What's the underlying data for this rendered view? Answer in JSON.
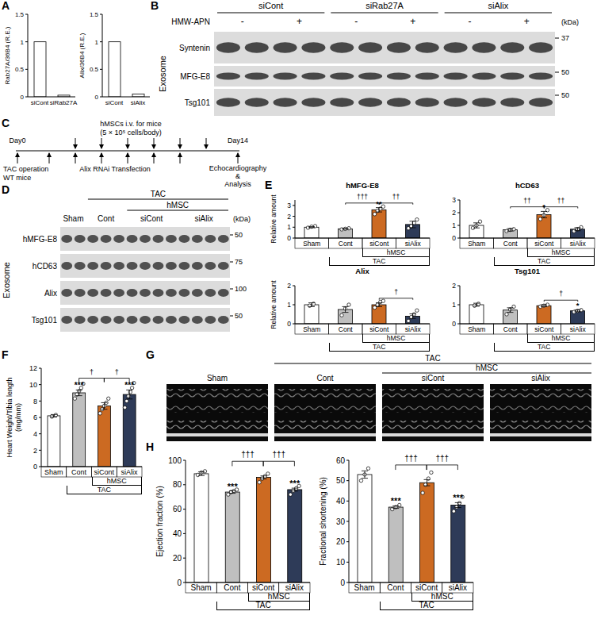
{
  "chart_data": [
    {
      "type": "bar",
      "y_label": "Rab27A/36B4 (R.E.)",
      "categories": [
        "siCont",
        "siRab27A"
      ],
      "values": [
        1,
        0.03
      ],
      "color": "#ffffff",
      "ylim": [
        0,
        1.5
      ],
      "yticks": [
        0,
        0.5,
        1,
        1.5
      ],
      "grid": false
    },
    {
      "type": "bar",
      "y_label": "Alix/36B4 (R.E.)",
      "categories": [
        "siCont",
        "siAlix"
      ],
      "values": [
        1,
        0.05
      ],
      "color": "#ffffff",
      "ylim": [
        0,
        1.5
      ],
      "yticks": [
        0,
        0.5,
        1,
        1.5
      ],
      "grid": false
    },
    {
      "type": "bar",
      "title": "hMFG-E8",
      "y_label": "Relative amount",
      "categories": [
        "Sham",
        "Cont",
        "siCont",
        "siAlix"
      ],
      "values": [
        1.0,
        0.85,
        2.6,
        1.25
      ],
      "errors": [
        0.05,
        0.03,
        0.2,
        0.3
      ],
      "points": [
        [
          0.95,
          1.05,
          1.1
        ],
        [
          0.8,
          0.85,
          0.9
        ],
        [
          2.2,
          2.5,
          2.7,
          2.9
        ],
        [
          0.9,
          1.1,
          1.4,
          1.7
        ]
      ],
      "annotations": [
        null,
        null,
        "**",
        null
      ],
      "brackets": [
        {
          "from": 1,
          "to": 2,
          "label": "†††"
        },
        {
          "from": 2,
          "to": 3,
          "label": "††"
        }
      ],
      "x_groups": [
        {
          "label": "hMSC",
          "from": 2,
          "to": 3
        },
        {
          "label": "TAC",
          "from": 1,
          "to": 3
        }
      ],
      "colors": [
        "#ffffff",
        "#bfbfbf",
        "#cc6a22",
        "#2e3b58"
      ],
      "ylim": [
        0,
        3.5
      ],
      "yticks": [
        0,
        1,
        2,
        3
      ],
      "grid": false
    },
    {
      "type": "bar",
      "title": "hCD63",
      "categories": [
        "Sham",
        "Cont",
        "siCont",
        "siAlix"
      ],
      "values": [
        1.0,
        0.65,
        1.85,
        0.7
      ],
      "errors": [
        0.2,
        0.1,
        0.25,
        0.12
      ],
      "points": [
        [
          0.8,
          1.0,
          1.3
        ],
        [
          0.55,
          0.65,
          0.7
        ],
        [
          1.5,
          1.8,
          2.2
        ],
        [
          0.55,
          0.7,
          0.85
        ]
      ],
      "annotations": [
        null,
        null,
        "*",
        null
      ],
      "brackets": [
        {
          "from": 1,
          "to": 2,
          "label": "††"
        },
        {
          "from": 2,
          "to": 3,
          "label": "††"
        }
      ],
      "x_groups": [
        {
          "label": "hMSC",
          "from": 2,
          "to": 3
        },
        {
          "label": "TAC",
          "from": 1,
          "to": 3
        }
      ],
      "colors": [
        "#ffffff",
        "#bfbfbf",
        "#cc6a22",
        "#2e3b58"
      ],
      "ylim": [
        0,
        3
      ],
      "yticks": [
        0,
        1,
        2,
        3
      ],
      "grid": false
    },
    {
      "type": "bar",
      "title": "Alix",
      "y_label": "Relative amount",
      "categories": [
        "Sham",
        "Cont",
        "siCont",
        "siAlix"
      ],
      "values": [
        1.0,
        0.75,
        1.0,
        0.4
      ],
      "errors": [
        0.1,
        0.15,
        0.1,
        0.12
      ],
      "points": [
        [
          0.95,
          1.05
        ],
        [
          0.45,
          0.8,
          1.0
        ],
        [
          0.85,
          1.0,
          1.15,
          1.2
        ],
        [
          0.15,
          0.35,
          0.5,
          0.7
        ]
      ],
      "annotations": [
        null,
        null,
        null,
        null
      ],
      "brackets": [
        {
          "from": 2,
          "to": 3,
          "label": "†"
        }
      ],
      "x_groups": [
        {
          "label": "hMSC",
          "from": 2,
          "to": 3
        },
        {
          "label": "TAC",
          "from": 1,
          "to": 3
        }
      ],
      "colors": [
        "#ffffff",
        "#bfbfbf",
        "#cc6a22",
        "#2e3b58"
      ],
      "ylim": [
        0,
        2
      ],
      "yticks": [
        0,
        1,
        2
      ],
      "grid": false
    },
    {
      "type": "bar",
      "title": "Tsg101",
      "categories": [
        "Sham",
        "Cont",
        "siCont",
        "siAlix"
      ],
      "values": [
        1.0,
        0.72,
        0.95,
        0.68
      ],
      "errors": [
        0.08,
        0.12,
        0.05,
        0.05
      ],
      "points": [
        [
          0.95,
          1.05
        ],
        [
          0.5,
          0.75,
          0.9
        ],
        [
          0.9,
          0.95,
          1.0
        ],
        [
          0.62,
          0.68,
          0.72
        ]
      ],
      "annotations": [
        null,
        null,
        null,
        "*"
      ],
      "brackets": [
        {
          "from": 2,
          "to": 3,
          "label": "†"
        }
      ],
      "x_groups": [
        {
          "label": "hMSC",
          "from": 2,
          "to": 3
        },
        {
          "label": "TAC",
          "from": 1,
          "to": 3
        }
      ],
      "colors": [
        "#ffffff",
        "#bfbfbf",
        "#cc6a22",
        "#2e3b58"
      ],
      "ylim": [
        0,
        2
      ],
      "yticks": [
        0,
        1,
        2
      ],
      "grid": false
    },
    {
      "type": "bar",
      "y_label": [
        "Heart Weight/Tibia length",
        "(mg/mm)"
      ],
      "categories": [
        "Sham",
        "Cont",
        "siCont",
        "siAlix"
      ],
      "values": [
        6.2,
        9.0,
        7.4,
        8.8
      ],
      "errors": [
        0.15,
        0.35,
        0.4,
        0.55
      ],
      "points": [
        [
          6.1,
          6.3
        ],
        [
          8.3,
          8.8,
          9.2,
          9.6,
          10.1
        ],
        [
          6.5,
          7.0,
          7.4,
          7.8,
          8.3
        ],
        [
          7.2,
          8.0,
          8.6,
          9.1,
          9.6,
          10.2
        ]
      ],
      "annotations": [
        null,
        "***",
        null,
        "***"
      ],
      "brackets": [
        {
          "from": 1,
          "to": 2,
          "label": "†"
        },
        {
          "from": 2,
          "to": 3,
          "label": "†"
        }
      ],
      "x_groups": [
        {
          "label": "hMSC",
          "from": 2,
          "to": 3
        },
        {
          "label": "TAC",
          "from": 1,
          "to": 3
        }
      ],
      "colors": [
        "#ffffff",
        "#bfbfbf",
        "#cc6a22",
        "#2e3b58"
      ],
      "ylim": [
        0,
        12
      ],
      "yticks": [
        0,
        2,
        4,
        6,
        8,
        10,
        12
      ],
      "grid": false
    },
    {
      "type": "bar",
      "y_label": "Ejection fraction (%)",
      "categories": [
        "Sham",
        "Cont",
        "siCont",
        "siAlix"
      ],
      "values": [
        89,
        74,
        86,
        76
      ],
      "errors": [
        1.5,
        1.0,
        1.2,
        1.2
      ],
      "points": [
        [
          88,
          90,
          91
        ],
        [
          72,
          74,
          75,
          76
        ],
        [
          82,
          85,
          87,
          89
        ],
        [
          72,
          75,
          77,
          79
        ]
      ],
      "annotations": [
        null,
        "***",
        null,
        "***"
      ],
      "brackets": [
        {
          "from": 1,
          "to": 2,
          "label": "†††"
        },
        {
          "from": 2,
          "to": 3,
          "label": "†††"
        }
      ],
      "x_groups": [
        {
          "label": "hMSC",
          "from": 2,
          "to": 3
        },
        {
          "label": "TAC",
          "from": 1,
          "to": 3
        }
      ],
      "colors": [
        "#ffffff",
        "#bfbfbf",
        "#cc6a22",
        "#2e3b58"
      ],
      "ylim": [
        0,
        100
      ],
      "yticks": [
        0,
        20,
        40,
        60,
        80,
        100
      ],
      "grid": false
    },
    {
      "type": "bar",
      "y_label": "Fractional shortening (%)",
      "categories": [
        "Sham",
        "Cont",
        "siCont",
        "siAlix"
      ],
      "values": [
        53,
        37,
        49,
        38
      ],
      "errors": [
        1.8,
        0.6,
        1.5,
        1.2
      ],
      "points": [
        [
          50,
          53,
          56
        ],
        [
          36,
          37,
          38
        ],
        [
          44,
          48,
          51,
          54
        ],
        [
          35,
          37,
          39,
          42
        ]
      ],
      "annotations": [
        null,
        "***",
        null,
        "***"
      ],
      "brackets": [
        {
          "from": 1,
          "to": 2,
          "label": "†††"
        },
        {
          "from": 2,
          "to": 3,
          "label": "†††"
        }
      ],
      "x_groups": [
        {
          "label": "hMSC",
          "from": 2,
          "to": 3
        },
        {
          "label": "TAC",
          "from": 1,
          "to": 3
        }
      ],
      "colors": [
        "#ffffff",
        "#bfbfbf",
        "#cc6a22",
        "#2e3b58"
      ],
      "ylim": [
        0,
        60
      ],
      "yticks": [
        0,
        10,
        20,
        30,
        40,
        50,
        60
      ],
      "grid": false
    }
  ],
  "figure": {
    "panel_labels": [
      "A",
      "B",
      "C",
      "D",
      "E",
      "F",
      "G",
      "H"
    ],
    "blot_B": {
      "section": "Exosome",
      "groups": [
        "siCont",
        "siRab27A",
        "siAlix"
      ],
      "treatment": "HMW-APN",
      "treatment_levels": [
        "-",
        "+"
      ],
      "unit": "(kDa)",
      "rows": [
        {
          "name": "Syntenin",
          "marker": 37
        },
        {
          "name": "MFG-E8",
          "marker": 50
        },
        {
          "name": "Tsg101",
          "marker": 50
        }
      ]
    },
    "timeline_C": {
      "label_top": [
        "hMSCs i.v. for mice",
        "(5 × 10⁵ cells/body)"
      ],
      "start": "Day0",
      "end": "Day14",
      "label_start": [
        "TAC operation",
        "WT mice"
      ],
      "label_mid": "Alix RNAi Transfection",
      "label_end": [
        "Echocardiography",
        "&",
        "Analysis"
      ]
    },
    "blot_D": {
      "section": "Exosome",
      "unit": "(kDa)",
      "lane_labels": [
        "Sham",
        "Cont",
        "siCont",
        "siAlix"
      ],
      "groups": [
        {
          "label": "TAC",
          "from": 1,
          "to": 3
        },
        {
          "label": "hMSC",
          "from": 2,
          "to": 3
        }
      ],
      "rows": [
        {
          "name": "hMFG-E8",
          "marker": 50
        },
        {
          "name": "hCD63",
          "marker": 75
        },
        {
          "name": "Alix",
          "marker": 100
        },
        {
          "name": "Tsg101",
          "marker": 50
        }
      ]
    },
    "echo_G": {
      "labels": [
        "Sham",
        "Cont",
        "siCont",
        "siAlix"
      ],
      "groups": [
        {
          "label": "TAC",
          "from": 1,
          "to": 3
        },
        {
          "label": "hMSC",
          "from": 2,
          "to": 3
        }
      ]
    }
  }
}
